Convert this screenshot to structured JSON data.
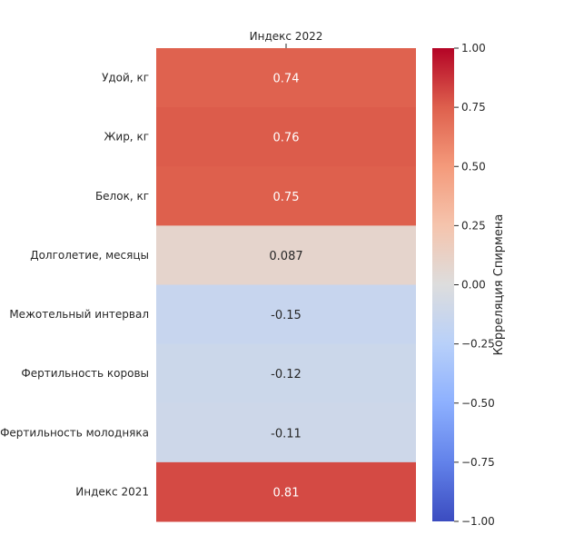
{
  "chart_data": {
    "type": "heatmap",
    "column_label": "Индекс 2022",
    "rows": [
      {
        "label": "Удой, кг",
        "value": 0.74,
        "text": "0.74"
      },
      {
        "label": "Жир, кг",
        "value": 0.76,
        "text": "0.76"
      },
      {
        "label": "Белок, кг",
        "value": 0.75,
        "text": "0.75"
      },
      {
        "label": "Долголетие, месяцы",
        "value": 0.087,
        "text": "0.087"
      },
      {
        "label": "Межотельный интервал",
        "value": -0.15,
        "text": "-0.15"
      },
      {
        "label": "Фертильность коровы",
        "value": -0.12,
        "text": "-0.12"
      },
      {
        "label": "Фертильность молодняка",
        "value": -0.11,
        "text": "-0.11"
      },
      {
        "label": "Индекс 2021",
        "value": 0.81,
        "text": "0.81"
      }
    ],
    "colorbar": {
      "label": "Корреляция Спирмена",
      "range": [
        -1.0,
        1.0
      ],
      "ticks": [
        1.0,
        0.75,
        0.5,
        0.25,
        0.0,
        -0.25,
        -0.5,
        -0.75,
        -1.0
      ],
      "tick_labels": [
        "1.00",
        "0.75",
        "0.50",
        "0.25",
        "0.00",
        "−0.25",
        "−0.50",
        "−0.75",
        "−1.00"
      ],
      "colormap": "coolwarm"
    }
  }
}
